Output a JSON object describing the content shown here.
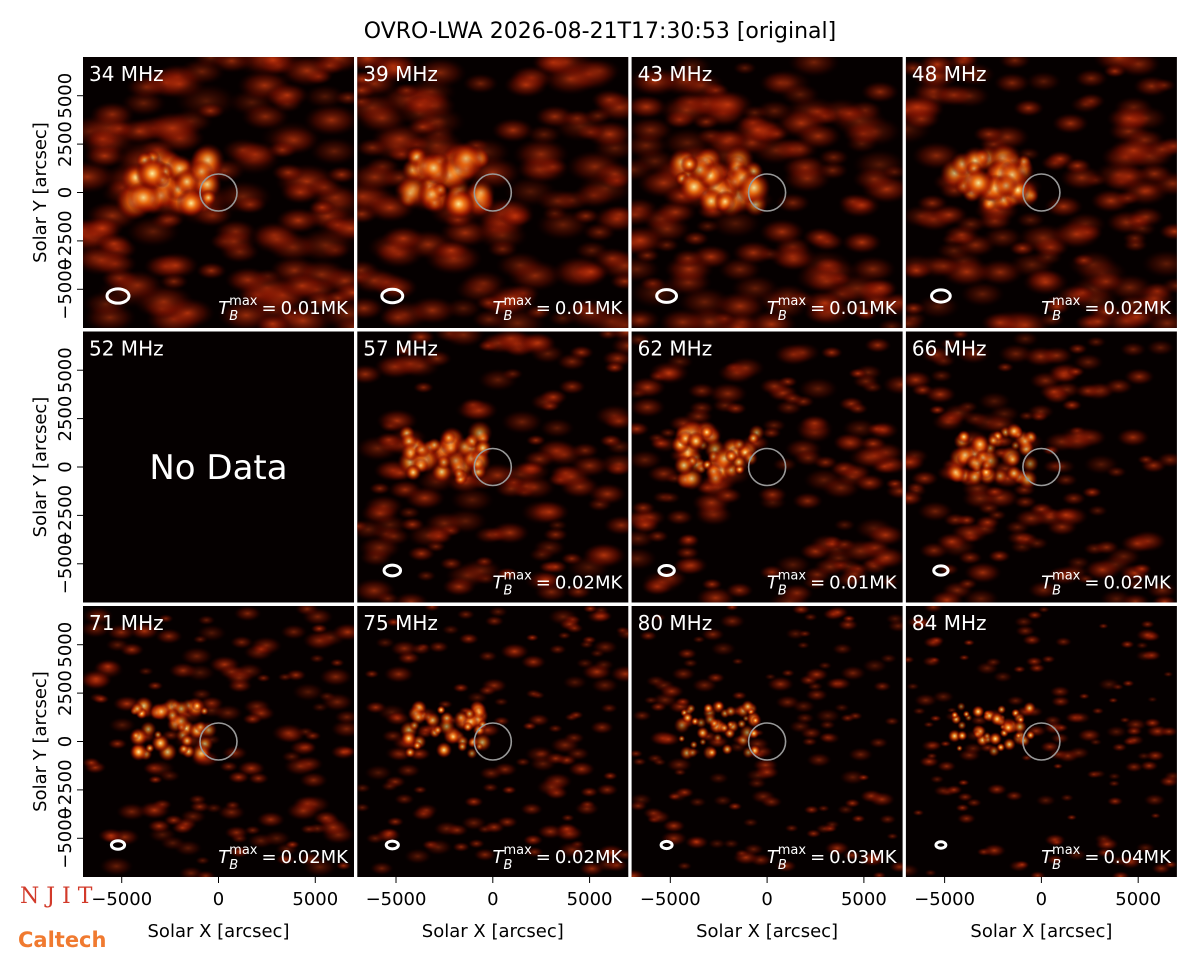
{
  "title": "OVRO-LWA 2026-08-21T17:30:53 [original]",
  "logos": {
    "njit": "N J I T",
    "caltech": "Caltech"
  },
  "chart_data": {
    "type": "image_grid",
    "xlabel": "Solar X [arcsec]",
    "ylabel": "Solar Y [arcsec]",
    "xlim": [
      -7000,
      7000
    ],
    "ylim": [
      -7000,
      7000
    ],
    "xticks": [
      {
        "value": -5000,
        "label": "−5000"
      },
      0,
      5000
    ],
    "yticks": [
      {
        "value": -5000,
        "label": "−5000"
      },
      {
        "value": -2500,
        "label": "−2500"
      },
      0,
      2500,
      5000
    ],
    "tb_symbol": "T",
    "tb_sub": "B",
    "tb_sup": "max",
    "tb_eq": "=",
    "no_data_text": "No Data",
    "panels": [
      {
        "label": "34 MHz",
        "tb_max": "0.01MK"
      },
      {
        "label": "39 MHz",
        "tb_max": "0.01MK"
      },
      {
        "label": "43 MHz",
        "tb_max": "0.01MK"
      },
      {
        "label": "48 MHz",
        "tb_max": "0.02MK"
      },
      {
        "label": "52 MHz",
        "no_data": true
      },
      {
        "label": "57 MHz",
        "tb_max": "0.02MK"
      },
      {
        "label": "62 MHz",
        "tb_max": "0.01MK"
      },
      {
        "label": "66 MHz",
        "tb_max": "0.02MK"
      },
      {
        "label": "71 MHz",
        "tb_max": "0.02MK"
      },
      {
        "label": "75 MHz",
        "tb_max": "0.02MK"
      },
      {
        "label": "80 MHz",
        "tb_max": "0.03MK"
      },
      {
        "label": "84 MHz",
        "tb_max": "0.04MK"
      }
    ]
  }
}
